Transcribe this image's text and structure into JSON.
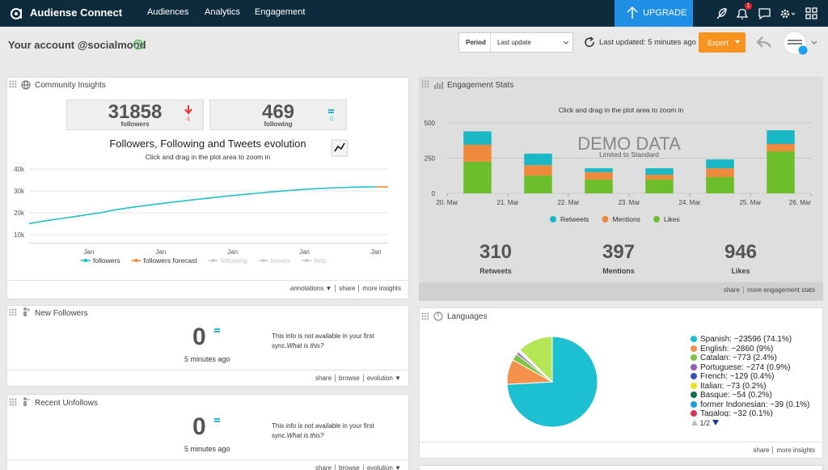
{
  "nav": {
    "brand": "Audiense Connect",
    "links": [
      "Audiences",
      "Analytics",
      "Engagement"
    ],
    "upgrade": "UPGRADE",
    "notifications": 1
  },
  "header": {
    "account": "Your account @socialmood",
    "period_label": "Period",
    "period_value": "Last update",
    "last_updated": "Last updated: 5 minutes ago",
    "export": "Export"
  },
  "community": {
    "title": "Community Insights",
    "stats": [
      {
        "value": 31858,
        "label": "followers",
        "change": -1
      },
      {
        "value": 469,
        "label": "following",
        "change": 0
      }
    ],
    "footer": [
      "annotations ▼",
      "share",
      "more insights"
    ]
  },
  "engagement": {
    "title": "Engagement Stats",
    "totals": [
      {
        "value": 310,
        "label": "Retweets"
      },
      {
        "value": 397,
        "label": "Mentions"
      },
      {
        "value": 946,
        "label": "Likes"
      }
    ],
    "footer": [
      "share",
      "more engagement stats"
    ]
  },
  "new_followers": {
    "title": "New Followers",
    "value": 0,
    "time": "5 minutes ago",
    "note": "This info is not available in your first sync.",
    "note_link": "What is this?",
    "footer": [
      "share",
      "browse",
      "evolution ▼"
    ]
  },
  "recent_unfollows": {
    "title": "Recent Unfollows",
    "value": 0,
    "time": "5 minutes ago",
    "note": "This info is not available in your first sync.",
    "note_link": "What is this?",
    "footer": [
      "share",
      "browse",
      "evolution ▼"
    ]
  },
  "languages": {
    "title": "Languages",
    "page": "1/2",
    "footer": [
      "share",
      "more insights"
    ]
  },
  "chart_data": [
    {
      "type": "line",
      "title": "Followers, Following and Tweets evolution",
      "subtitle": "Click and drag in the plot area to zoom in",
      "categories": [
        null,
        null,
        null,
        null,
        null,
        "Jan",
        null,
        null,
        null,
        null,
        null,
        "Jan",
        null,
        null,
        null,
        null,
        null,
        "Jan",
        null,
        null,
        null,
        null,
        null,
        "Jan",
        null,
        null,
        null,
        null,
        null,
        "Jan",
        null
      ],
      "series": [
        {
          "name": "followers",
          "color": "#1ec2c6",
          "values": [
            15000,
            16000,
            16800,
            17600,
            18400,
            19300,
            20000,
            21200,
            22000,
            22800,
            23500,
            24200,
            24900,
            25500,
            26100,
            26700,
            27300,
            27900,
            28400,
            28900,
            29400,
            29900,
            30300,
            30700,
            31000,
            31300,
            31500,
            31700,
            31800,
            31850,
            null
          ]
        },
        {
          "name": "followers forecast",
          "color": "#f0883a",
          "values": [
            null,
            null,
            null,
            null,
            null,
            null,
            null,
            null,
            null,
            null,
            null,
            null,
            null,
            null,
            null,
            null,
            null,
            null,
            null,
            null,
            null,
            null,
            null,
            null,
            null,
            null,
            null,
            null,
            null,
            31850,
            31858
          ]
        }
      ],
      "hidden_series": [
        "following",
        "tweets",
        "lists"
      ],
      "ylim": [
        6000,
        40000
      ],
      "yticks": [
        {
          "value": 10000,
          "label": "10k"
        },
        {
          "value": 20000,
          "label": "20k"
        },
        {
          "value": 30000,
          "label": "30k"
        },
        {
          "value": 40000,
          "label": "40k"
        }
      ],
      "grid": true
    },
    {
      "type": "bar",
      "stacked": true,
      "title": "Click and drag in the plot area to zoom in",
      "watermark": "DEMO DATA",
      "watermark_note": "Limited to Standard",
      "x": [
        0.5,
        1.5,
        2.5,
        3.5,
        4.5,
        5.5
      ],
      "xlim": [
        0,
        6
      ],
      "xticks": [
        {
          "value": 0,
          "label": "20. Mar"
        },
        {
          "value": 1,
          "label": "21. Mar"
        },
        {
          "value": 2,
          "label": "22. Mar"
        },
        {
          "value": 3,
          "label": "23. Mar"
        },
        {
          "value": 4,
          "label": "24. Mar"
        },
        {
          "value": 5,
          "label": "25. Mar"
        },
        {
          "value": 6,
          "label": "26. Mar"
        }
      ],
      "ylim": [
        0,
        500
      ],
      "yticks": [
        0,
        250,
        500
      ],
      "grid": true,
      "series": [
        {
          "name": "Retweets",
          "color": "#1ab8c4",
          "values": [
            95,
            82,
            28,
            46,
            63,
            97
          ]
        },
        {
          "name": "Mentions",
          "color": "#ef8a3d",
          "values": [
            120,
            74,
            52,
            34,
            63,
            52
          ]
        },
        {
          "name": "Likes",
          "color": "#6cbf2a",
          "values": [
            225,
            126,
            98,
            98,
            115,
            299
          ]
        }
      ]
    },
    {
      "type": "pie",
      "labels": [
        "Spanish: ~23596 (74.1%)",
        "English: ~2860 (9%)",
        "Catalan: ~773 (2.4%)",
        "Portuguese: ~274 (0.9%)",
        "French: ~129 (0.4%)",
        "Italian: ~73 (0.2%)",
        "Basque: ~54 (0.2%)",
        "former Indonesian: ~39 (0.1%)",
        "Tagalog: ~32 (0.1%)",
        null
      ],
      "values": [
        74.1,
        9,
        2.4,
        0.9,
        0.4,
        0.2,
        0.2,
        0.1,
        0.1,
        12.6
      ],
      "colors": [
        "#1cc0d0",
        "#f5914a",
        "#7dc242",
        "#8e5cb0",
        "#3c55b5",
        "#e8e21c",
        "#0f6b4f",
        "#1d9fd8",
        "#d6365a",
        "#b5e655"
      ]
    }
  ]
}
